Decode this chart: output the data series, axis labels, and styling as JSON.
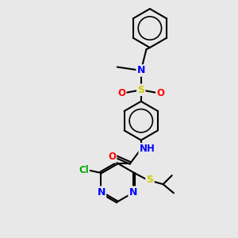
{
  "background_color": "#e8e8e8",
  "bond_color": "#000000",
  "atom_colors": {
    "N": "#0000ff",
    "O": "#ff0000",
    "S": "#cccc00",
    "Cl": "#00aa00",
    "C": "#000000",
    "H": "#000000"
  },
  "figsize": [
    3.0,
    3.0
  ],
  "dpi": 100
}
